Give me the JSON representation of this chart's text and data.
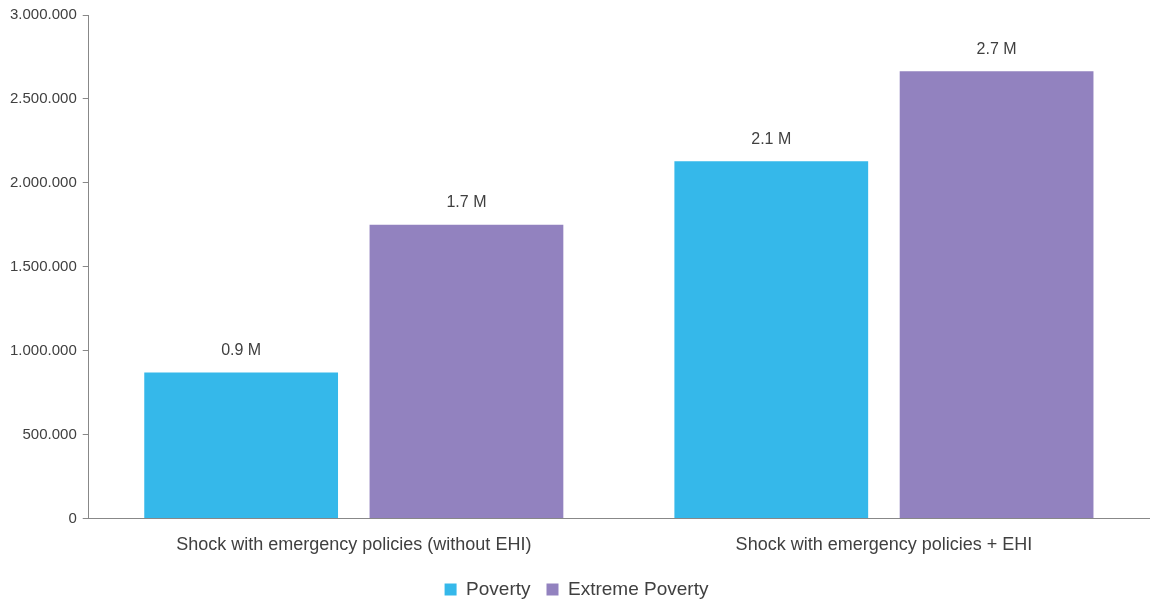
{
  "chart_data": {
    "type": "bar",
    "categories": [
      "Shock with emergency policies (without EHI)",
      "Shock with emergency policies + EHI"
    ],
    "series": [
      {
        "name": "Poverty",
        "color": "#35b8ea",
        "values": [
          870000,
          2128000
        ],
        "value_labels": [
          "0.9 M",
          "2.1 M"
        ]
      },
      {
        "name": "Extreme Poverty",
        "color": "#9282bf",
        "values": [
          1750000,
          2665000
        ],
        "value_labels": [
          "1.7 M",
          "2.7 M"
        ]
      }
    ],
    "ylim": [
      0,
      3000000
    ],
    "yticks": [
      0,
      {
        "value": 500000,
        "label": "500.000"
      },
      {
        "value": 1000000,
        "label": "1.000.000"
      },
      {
        "value": 1500000,
        "label": "1.500.000"
      },
      {
        "value": 2000000,
        "label": "2.000.000"
      },
      {
        "value": 2500000,
        "label": "2.500.000"
      },
      {
        "value": 3000000,
        "label": "3.000.000"
      }
    ],
    "grid": false,
    "legend": "bottom"
  }
}
